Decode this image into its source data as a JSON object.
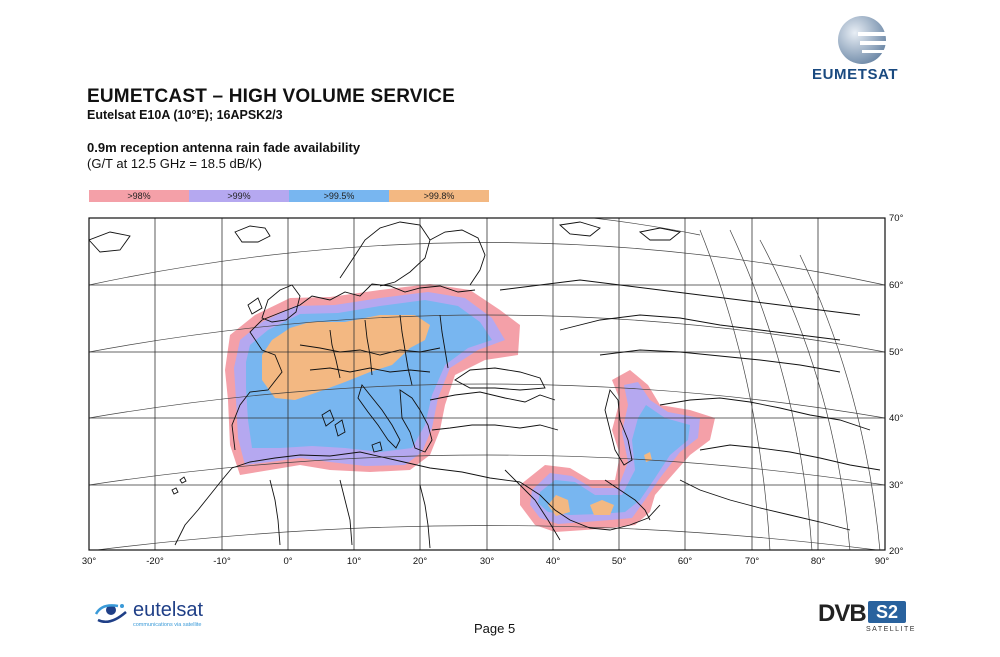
{
  "header": {
    "title": "EUMETCAST – HIGH VOLUME SERVICE",
    "subtitle": "Eutelsat E10A (10°E); 16APSK2/3",
    "caption_line1": "0.9m reception antenna rain fade availability",
    "caption_line2": "(G/T at 12.5 GHz = 18.5 dB/K)"
  },
  "legend": [
    {
      "label": ">98%",
      "color": "#f4a0a8"
    },
    {
      "label": ">99%",
      "color": "#b5a8f0"
    },
    {
      "label": ">99.5%",
      "color": "#78b6f0"
    },
    {
      "label": ">99.8%",
      "color": "#f3b882"
    }
  ],
  "map": {
    "lon_labels": [
      "30°",
      "-20°",
      "-10°",
      "0°",
      "10°",
      "20°",
      "30°",
      "40°",
      "50°",
      "60°",
      "70°",
      "80°",
      "90°"
    ],
    "lat_labels": [
      "70°",
      "60°",
      "50°",
      "40°",
      "30°",
      "20°"
    ]
  },
  "logos": {
    "eumetsat": "EUMETSAT",
    "eutelsat": "eutelsat",
    "eutelsat_tagline": "communications via satellite",
    "dvb": "DVB",
    "s2": "S2",
    "satellite": "SATELLITE"
  },
  "footer": {
    "page": "Page 5"
  }
}
